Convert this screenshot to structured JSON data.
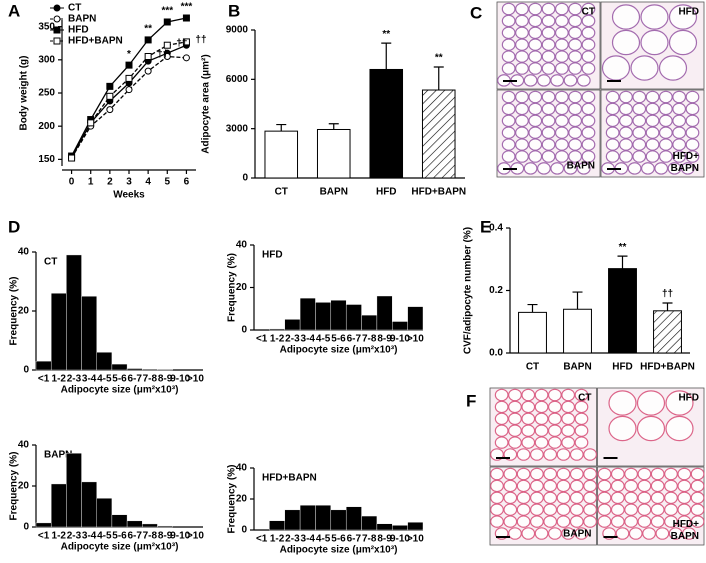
{
  "chart_data": [
    {
      "type": "line",
      "panel_label": "A",
      "x_label": "Weeks",
      "y_label": "Body weight (g)",
      "x": [
        0,
        1,
        2,
        3,
        4,
        5,
        6
      ],
      "xlim": [
        -0.5,
        6.5
      ],
      "xticks": [
        0,
        1,
        2,
        3,
        4,
        5,
        6
      ],
      "ylim": [
        140,
        360
      ],
      "yticks": [
        150,
        200,
        250,
        300,
        350
      ],
      "series": [
        {
          "name": "CT",
          "color": "#000000",
          "marker": "circle",
          "filled": true,
          "dashed": false,
          "values": [
            153,
            205,
            238,
            265,
            298,
            310,
            322
          ]
        },
        {
          "name": "BAPN",
          "color": "#000000",
          "marker": "circle",
          "filled": false,
          "dashed": true,
          "values": [
            152,
            200,
            225,
            255,
            283,
            305,
            303
          ]
        },
        {
          "name": "HFD",
          "color": "#000000",
          "marker": "square",
          "filled": true,
          "dashed": false,
          "values": [
            155,
            210,
            260,
            292,
            330,
            357,
            363
          ]
        },
        {
          "name": "HFD+BAPN",
          "color": "#000000",
          "marker": "square",
          "filled": false,
          "dashed": true,
          "values": [
            152,
            205,
            245,
            272,
            305,
            322,
            327
          ]
        }
      ],
      "annotations": [
        {
          "x": 3,
          "series": 2,
          "text": "*"
        },
        {
          "x": 4,
          "series": 2,
          "text": "**"
        },
        {
          "x": 5,
          "series": 2,
          "text": "***"
        },
        {
          "x": 6,
          "series": 2,
          "text": "***"
        },
        {
          "x": 4,
          "series": 3,
          "text": "††"
        },
        {
          "x": 5,
          "series": 3,
          "text": "††"
        },
        {
          "x": 6,
          "series": 3,
          "text": "††"
        }
      ]
    },
    {
      "type": "bar",
      "panel_label": "B",
      "y_label": "Adipocyte area (μm²)",
      "categories": [
        "CT",
        "BAPN",
        "HFD",
        "HFD+BAPN"
      ],
      "values": [
        2850,
        2950,
        6600,
        5350
      ],
      "errors": [
        400,
        350,
        1600,
        1400
      ],
      "colors": [
        "#ffffff",
        "#ffffff",
        "#000000",
        "hatch"
      ],
      "ylim": [
        0,
        9000
      ],
      "yticks": [
        0,
        3000,
        6000,
        9000
      ],
      "annotations": [
        {
          "category": 2,
          "text": "**"
        },
        {
          "category": 3,
          "text": "**"
        }
      ]
    },
    {
      "type": "histogram",
      "panel_label": "D",
      "title": "CT",
      "x_label": "Adipocyte size (μm²x10³)",
      "y_label": "Frequency (%)",
      "categories": [
        "<1",
        "1-2",
        "2-3",
        "3-4",
        "4-5",
        "5-6",
        "6-7",
        "7-8",
        "8-9",
        "9-10",
        ">10"
      ],
      "values": [
        3,
        26,
        39,
        25,
        6,
        2,
        0.5,
        0.3,
        0.2,
        0,
        0
      ],
      "color": "#000000",
      "ylim": [
        0,
        40
      ],
      "yticks": [
        0,
        20,
        40
      ]
    },
    {
      "type": "histogram",
      "title": "HFD",
      "x_label": "Adipocyte size (μm²x10³)",
      "y_label": "Frequency (%)",
      "categories": [
        "<1",
        "1-2",
        "2-3",
        "3-4",
        "4-5",
        "5-6",
        "6-7",
        "7-8",
        "8-9",
        "9-10",
        ">10"
      ],
      "values": [
        0,
        0.5,
        5,
        15,
        13,
        14,
        12,
        7,
        16,
        4,
        11
      ],
      "color": "#000000",
      "ylim": [
        0,
        40
      ],
      "yticks": [
        0,
        20,
        40
      ]
    },
    {
      "type": "histogram",
      "title": "BAPN",
      "x_label": "Adipocyte size (μm²x10³)",
      "y_label": "Frequency (%)",
      "categories": [
        "<1",
        "1-2",
        "2-3",
        "3-4",
        "4-5",
        "5-6",
        "6-7",
        "7-8",
        "8-9",
        "9-10",
        ">10"
      ],
      "values": [
        2,
        21,
        36,
        22,
        14,
        6,
        3,
        1.5,
        0.5,
        0,
        0
      ],
      "color": "#000000",
      "ylim": [
        0,
        40
      ],
      "yticks": [
        0,
        20,
        40
      ]
    },
    {
      "type": "histogram",
      "title": "HFD+BAPN",
      "x_label": "Adipocyte size (μm²x10³)",
      "y_label": "Frequency (%)",
      "categories": [
        "<1",
        "1-2",
        "2-3",
        "3-4",
        "4-5",
        "5-6",
        "6-7",
        "7-8",
        "8-9",
        "9-10",
        ">10"
      ],
      "values": [
        0,
        6,
        13,
        16,
        16,
        13,
        15,
        9,
        4,
        3,
        5
      ],
      "color": "#000000",
      "ylim": [
        0,
        40
      ],
      "yticks": [
        0,
        20,
        40
      ]
    },
    {
      "type": "bar",
      "panel_label": "E",
      "y_label": "CVF/adipocyte number (%)",
      "categories": [
        "CT",
        "BAPN",
        "HFD",
        "HFD+BAPN"
      ],
      "values": [
        0.13,
        0.14,
        0.27,
        0.135
      ],
      "errors": [
        0.025,
        0.055,
        0.04,
        0.025
      ],
      "colors": [
        "#ffffff",
        "#ffffff",
        "#000000",
        "hatch"
      ],
      "ylim": [
        0,
        0.4
      ],
      "yticks": [
        {
          "value": 0,
          "label": "0.0"
        },
        0.2,
        0.4
      ],
      "annotations": [
        {
          "category": 2,
          "text": "**"
        },
        {
          "category": 3,
          "text": "††"
        }
      ]
    }
  ],
  "micrographs": [
    {
      "panel_label": "C",
      "stain": "#9b5fa8",
      "labels": [
        "CT",
        "HFD",
        "BAPN",
        "HFD+\nBAPN"
      ]
    },
    {
      "panel_label": "F",
      "stain": "#d9577e",
      "labels": [
        "CT",
        "HFD",
        "BAPN",
        "HFD+\nBAPN"
      ]
    }
  ]
}
